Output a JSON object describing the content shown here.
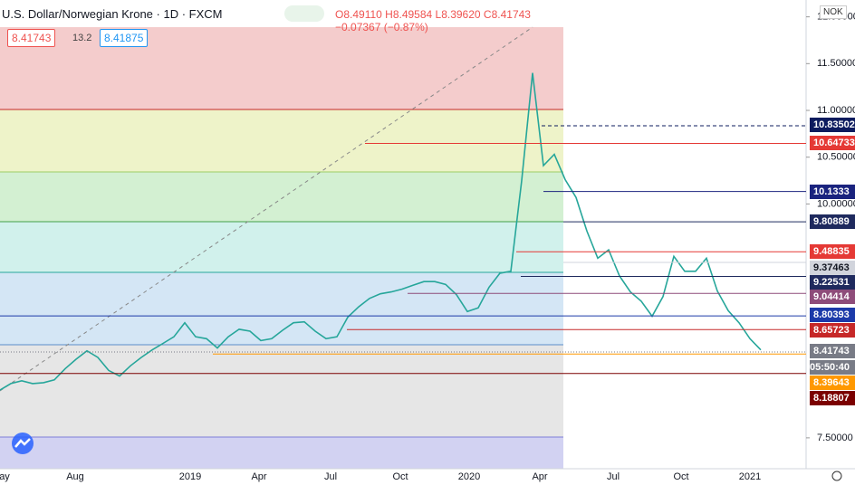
{
  "chart_data": {
    "type": "line",
    "title": "U.S. Dollar/Norwegian Krone · 1D · FXCM",
    "ohlc": "O8.49110 H8.49584 L8.39620 C8.41743 −0.07367 (−0.87%)",
    "sell_price": "8.41743",
    "spread": "13.2",
    "buy_price": "8.41875",
    "currency": "NOK",
    "countdown": "05:50:40",
    "color": "#26a69a",
    "x_labels": [
      "ay",
      "Aug",
      "2019",
      "Apr",
      "Jul",
      "Oct",
      "2020",
      "Apr",
      "Jul",
      "Oct",
      "2021"
    ],
    "values": [
      8.01,
      8.08,
      8.11,
      8.08,
      8.09,
      8.12,
      8.24,
      8.34,
      8.43,
      8.36,
      8.22,
      8.16,
      8.27,
      8.36,
      8.44,
      8.51,
      8.58,
      8.73,
      8.58,
      8.56,
      8.46,
      8.58,
      8.66,
      8.64,
      8.54,
      8.56,
      8.65,
      8.73,
      8.74,
      8.64,
      8.56,
      8.58,
      8.79,
      8.9,
      8.99,
      9.04,
      9.06,
      9.09,
      9.13,
      9.17,
      9.17,
      9.14,
      9.03,
      8.85,
      8.89,
      9.11,
      9.26,
      9.28,
      10.25,
      11.4,
      10.41,
      10.53,
      10.26,
      10.07,
      9.71,
      9.42,
      9.51,
      9.23,
      9.06,
      8.96,
      8.8,
      9.01,
      9.44,
      9.28,
      9.28,
      9.42,
      9.07,
      8.86,
      8.73,
      8.56,
      8.44
    ],
    "ylim": [
      7.17,
      12.18
    ],
    "yticks": [
      {
        "value": 12.0,
        "label": "12.00000"
      },
      {
        "value": 11.5,
        "label": "11.50000"
      },
      {
        "value": 11.0,
        "label": "11.00000"
      },
      {
        "value": 10.5,
        "label": "10.50000"
      },
      {
        "value": 10.0,
        "label": "10.00000"
      },
      {
        "value": 7.5,
        "label": "7.50000"
      }
    ],
    "levels": [
      {
        "value": 10.83502,
        "color": "#0d1b5e"
      },
      {
        "value": 10.64733,
        "color": "#e53935"
      },
      {
        "value": 10.1333,
        "color": "#1a237e"
      },
      {
        "value": 9.80889,
        "color": "#1f2a5e"
      },
      {
        "value": 9.48835,
        "color": "#e53935"
      },
      {
        "value": 9.37463,
        "color": "#d1d4dc"
      },
      {
        "value": 9.22531,
        "color": "#1f2a5e"
      },
      {
        "value": 9.04414,
        "color": "#8e4c7a"
      },
      {
        "value": 8.80393,
        "color": "#1c3aa9"
      },
      {
        "value": 8.65723,
        "color": "#c62828"
      },
      {
        "value": 8.41743,
        "color": "#787b86"
      },
      {
        "value": 8.39643,
        "color": "#ff9800"
      },
      {
        "value": 8.18807,
        "color": "#7b0000"
      }
    ]
  }
}
